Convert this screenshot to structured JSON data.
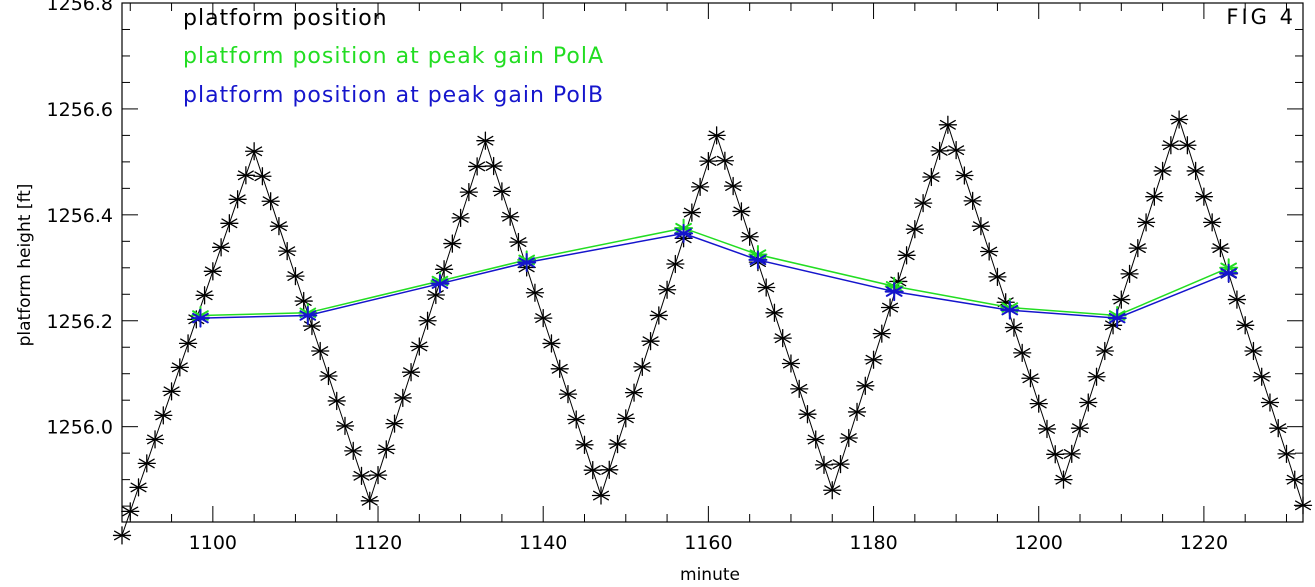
{
  "chart_data": {
    "type": "line",
    "fig_label": "FIG   4",
    "xlabel": "minute",
    "ylabel": "platform height [ft]",
    "xlim": [
      1089,
      1232
    ],
    "ylim": [
      1255.82,
      1256.8
    ],
    "xticks": [
      1100,
      1120,
      1140,
      1160,
      1180,
      1200,
      1220
    ],
    "yticks": [
      1256.0,
      1256.2,
      1256.4,
      1256.6,
      1256.8
    ],
    "ytick_labels": [
      "1256.0",
      "1256.2",
      "1256.4",
      "1256.6",
      "1256.8"
    ],
    "grid": false,
    "legend_position": "top-left",
    "series": [
      {
        "name": "platform position",
        "color": "#000000",
        "marker": "asterisk",
        "line": true,
        "oscillation": {
          "minute_start": 1089,
          "minute_end": 1232,
          "step_minutes": 1,
          "peaks": [
            [
              1105,
              1256.52
            ],
            [
              1133,
              1256.54
            ],
            [
              1161,
              1256.55
            ],
            [
              1189,
              1256.57
            ],
            [
              1217,
              1256.58
            ]
          ],
          "troughs": [
            [
              1090,
              1255.84
            ],
            [
              1119,
              1255.86
            ],
            [
              1147,
              1255.87
            ],
            [
              1175,
              1255.88
            ],
            [
              1203,
              1255.9
            ],
            [
              1231,
              1255.9
            ]
          ]
        }
      },
      {
        "name": "platform position at peak gain PolA",
        "color": "#22dd22",
        "marker": "asterisk",
        "line": true,
        "x": [
          1098.5,
          1111.5,
          1127.5,
          1138,
          1157,
          1166,
          1182.5,
          1196.5,
          1209.5,
          1223
        ],
        "y": [
          1256.21,
          1256.215,
          1256.275,
          1256.315,
          1256.375,
          1256.325,
          1256.265,
          1256.225,
          1256.21,
          1256.3
        ]
      },
      {
        "name": "platform position at peak gain PolB",
        "color": "#1515cc",
        "marker": "asterisk",
        "line": true,
        "x": [
          1098.5,
          1111.5,
          1127.5,
          1138,
          1157,
          1166,
          1182.5,
          1196.5,
          1209.5,
          1223
        ],
        "y": [
          1256.205,
          1256.21,
          1256.27,
          1256.31,
          1256.365,
          1256.315,
          1256.255,
          1256.22,
          1256.205,
          1256.29
        ]
      }
    ]
  }
}
